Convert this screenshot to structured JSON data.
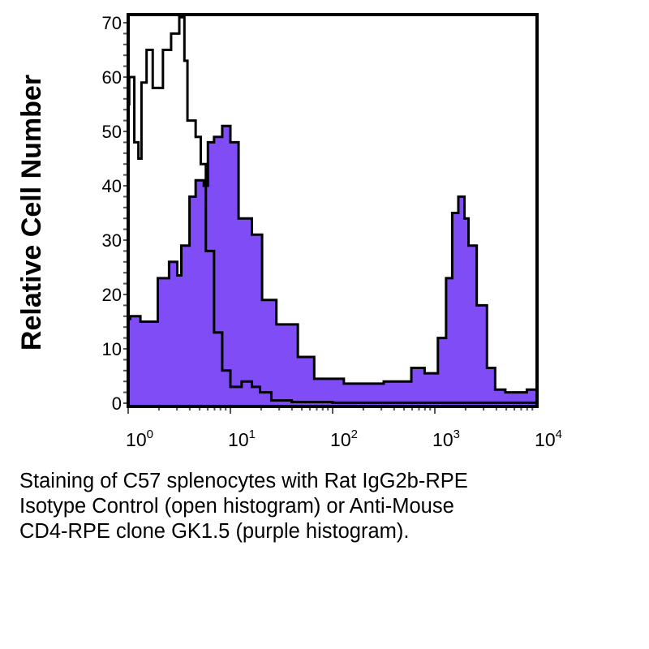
{
  "chart_data": {
    "type": "area",
    "title": "",
    "xlabel": "",
    "ylabel": "Relative Cell Number",
    "xscale": "log",
    "xlim_log10": [
      0,
      4
    ],
    "ylim": [
      0,
      70
    ],
    "yticks": [
      0,
      10,
      20,
      30,
      40,
      50,
      60,
      70
    ],
    "xticks": [
      {
        "base": "10",
        "exp": "0"
      },
      {
        "base": "10",
        "exp": "1"
      },
      {
        "base": "10",
        "exp": "2"
      },
      {
        "base": "10",
        "exp": "3"
      },
      {
        "base": "10",
        "exp": "4"
      }
    ],
    "grid": false,
    "series": [
      {
        "name": "Anti-Mouse CD4-RPE clone GK1.5 (purple histogram)",
        "style": "filled",
        "color": "#7f4cf5",
        "log10_x": [
          0,
          0.02,
          0.12,
          0.29,
          0.4,
          0.48,
          0.52,
          0.6,
          0.66,
          0.74,
          0.78,
          0.84,
          0.92,
          1.0,
          1.08,
          1.21,
          1.31,
          1.45,
          1.66,
          1.82,
          2.11,
          2.5,
          2.66,
          2.77,
          2.9,
          3.03,
          3.11,
          3.17,
          3.23,
          3.29,
          3.33,
          3.41,
          3.51,
          3.59,
          3.69,
          3.9,
          4.0
        ],
        "y": [
          15.5,
          16,
          15,
          23,
          26,
          23.5,
          29,
          38,
          41,
          40,
          48,
          49,
          51,
          48,
          34,
          31,
          19,
          14.5,
          8.5,
          4.5,
          3.6,
          4,
          4,
          6.5,
          5.5,
          12,
          23,
          35,
          38,
          34,
          29,
          18,
          6.5,
          2.5,
          2,
          2.5,
          3
        ]
      },
      {
        "name": "Rat IgG2b-RPE Isotype Control (open histogram)",
        "style": "open",
        "color": "#000000",
        "log10_x": [
          0,
          0.01,
          0.06,
          0.1,
          0.13,
          0.18,
          0.24,
          0.29,
          0.34,
          0.42,
          0.5,
          0.55,
          0.58,
          0.66,
          0.71,
          0.76,
          0.84,
          0.92,
          1.0,
          1.11,
          1.21,
          1.29,
          1.4,
          1.6,
          2.0,
          3.0,
          4.0
        ],
        "y": [
          55,
          60,
          48,
          45,
          59,
          65,
          58,
          58,
          65,
          68,
          71,
          63,
          52,
          49,
          44,
          28,
          13,
          6,
          3,
          4,
          3,
          2,
          0.5,
          0.2,
          0.1,
          0.1,
          0.1
        ]
      }
    ]
  },
  "caption": {
    "lines": [
      "Staining of C57 splenocytes with Rat IgG2b-RPE",
      "Isotype Control (open histogram) or Anti-Mouse",
      "CD4-RPE clone GK1.5 (purple histogram)."
    ]
  }
}
